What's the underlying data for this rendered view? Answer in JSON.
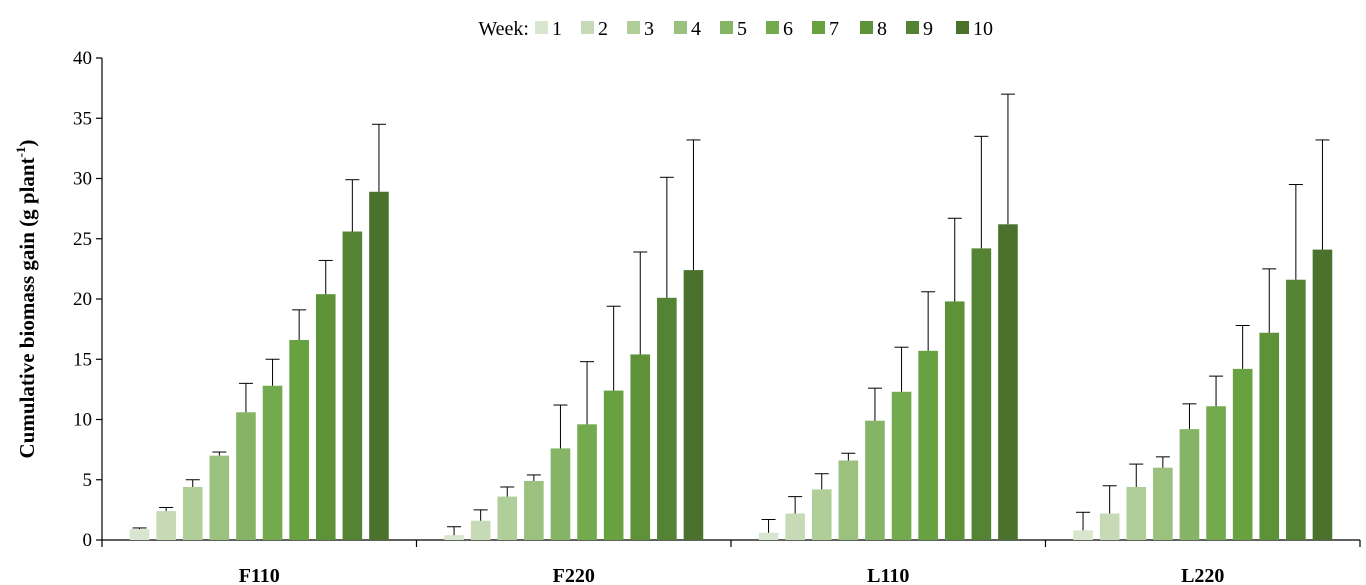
{
  "chart_data": {
    "type": "bar",
    "categories": [
      "F110",
      "F220",
      "L110",
      "L220"
    ],
    "ylabel": "Cumulative biomass gain (g plant",
    "ylabel_sup": "-1",
    "ylabel_close": ")",
    "ylim": [
      0,
      40
    ],
    "yticks": [
      0,
      5,
      10,
      15,
      20,
      25,
      30,
      35,
      40
    ],
    "legend_title": "Week:",
    "legend_position": "top-center",
    "grid": false,
    "series": [
      {
        "name": "1",
        "color": "#d9e6cf",
        "values": [
          0.9,
          0.4,
          0.6,
          0.8
        ],
        "errors": [
          0.1,
          0.7,
          1.1,
          1.5
        ]
      },
      {
        "name": "2",
        "color": "#c6dbb5",
        "values": [
          2.4,
          1.6,
          2.2,
          2.2
        ],
        "errors": [
          0.3,
          0.9,
          1.4,
          2.3
        ]
      },
      {
        "name": "3",
        "color": "#b0cf98",
        "values": [
          4.4,
          3.6,
          4.2,
          4.4
        ],
        "errors": [
          0.6,
          0.8,
          1.3,
          1.9
        ]
      },
      {
        "name": "4",
        "color": "#9bc17f",
        "values": [
          7.0,
          4.9,
          6.6,
          6.0
        ],
        "errors": [
          0.3,
          0.5,
          0.6,
          0.9
        ]
      },
      {
        "name": "5",
        "color": "#85b466",
        "values": [
          10.6,
          7.6,
          9.9,
          9.2
        ],
        "errors": [
          2.4,
          3.6,
          2.7,
          2.1
        ]
      },
      {
        "name": "6",
        "color": "#73aa4d",
        "values": [
          12.8,
          9.6,
          12.3,
          11.1
        ],
        "errors": [
          2.2,
          5.2,
          3.7,
          2.5
        ]
      },
      {
        "name": "7",
        "color": "#68a140",
        "values": [
          16.6,
          12.4,
          15.7,
          14.2
        ],
        "errors": [
          2.5,
          7.0,
          4.9,
          3.6
        ]
      },
      {
        "name": "8",
        "color": "#5e9238",
        "values": [
          20.4,
          15.4,
          19.8,
          17.2
        ],
        "errors": [
          2.8,
          8.5,
          6.9,
          5.3
        ]
      },
      {
        "name": "9",
        "color": "#548433",
        "values": [
          25.6,
          20.1,
          24.2,
          21.6
        ],
        "errors": [
          4.3,
          10.0,
          9.3,
          7.9
        ]
      },
      {
        "name": "10",
        "color": "#4b722d",
        "values": [
          28.9,
          22.4,
          26.2,
          24.1
        ],
        "errors": [
          5.6,
          10.8,
          10.8,
          9.1
        ]
      }
    ]
  }
}
